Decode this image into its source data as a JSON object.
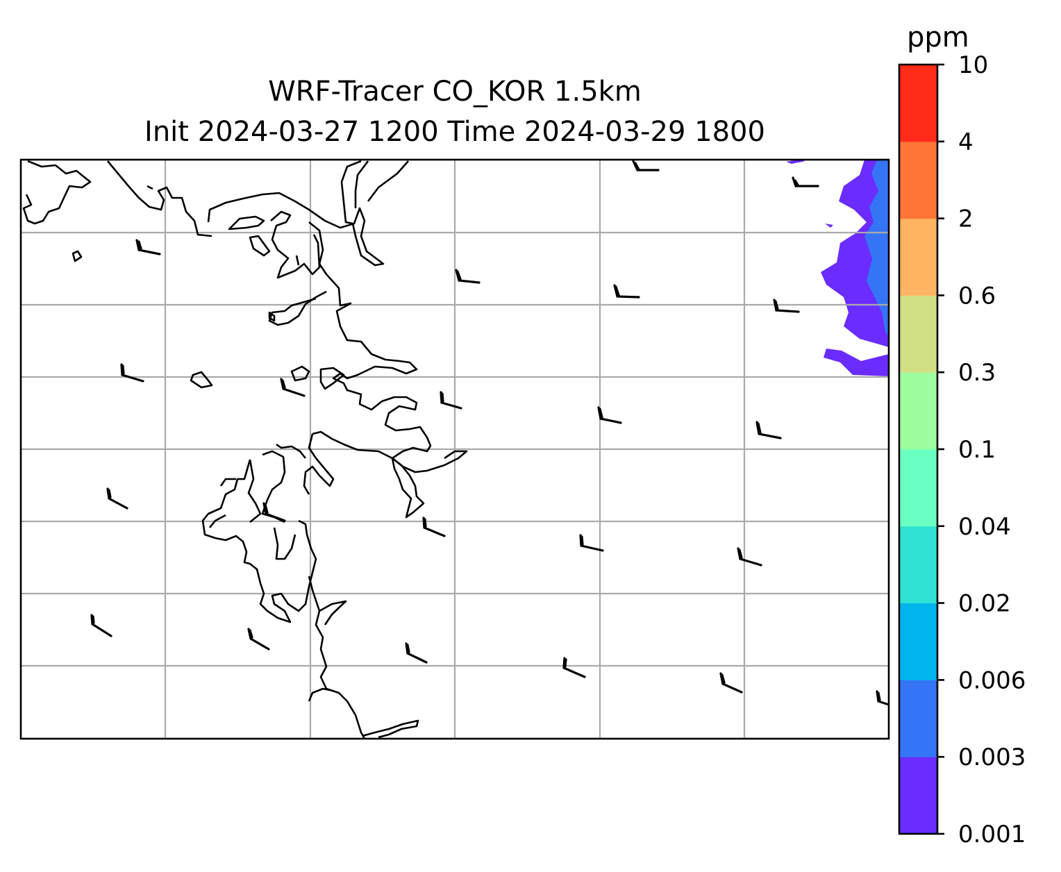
{
  "title_line1": "WRF-Tracer CO_KOR 1.5km",
  "title_line2": "Init 2024-03-27 1200 Time 2024-03-29 1800",
  "colorbar": {
    "unit": "ppm",
    "levels": [
      "0.001",
      "0.003",
      "0.006",
      "0.02",
      "0.04",
      "0.1",
      "0.3",
      "0.6",
      "2",
      "4",
      "10"
    ],
    "colors": [
      "#6a2cff",
      "#3575f5",
      "#00b4ee",
      "#30e1d6",
      "#69ffc1",
      "#9dfd9f",
      "#d1e084",
      "#ffb463",
      "#ff7439",
      "#ff2b18"
    ]
  },
  "map": {
    "land_fill": "#ffffff",
    "coast_color": "#000000",
    "grid_color": "#aaaaaa",
    "contour_colors": {
      "low": "#6a2cff",
      "mid": "#3575f5"
    }
  }
}
